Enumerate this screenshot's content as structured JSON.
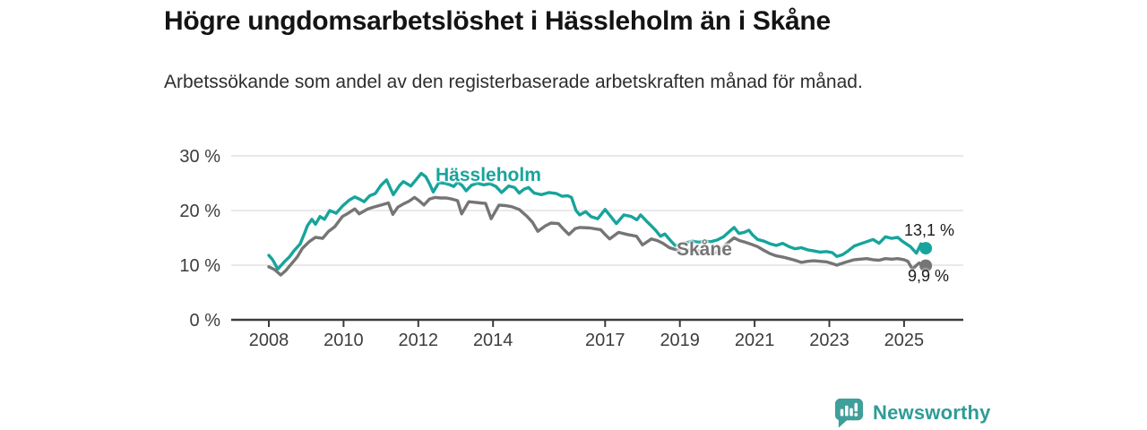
{
  "chart_data": {
    "type": "line",
    "title": "Högre ungdomsarbetslöshet i Hässleholm än i Skåne",
    "subtitle": "Arbetssökande som andel av den registerbaserade arbetskraften månad för månad.",
    "unit": "%",
    "xlabel": "",
    "ylabel": "",
    "ylim": [
      0,
      30
    ],
    "xlim": [
      2007,
      2026.5
    ],
    "grid": "horizontal-only",
    "legend": "inline-series-labels",
    "y_ticks": [
      {
        "v": 0,
        "label": "0 %"
      },
      {
        "v": 10,
        "label": "10 %"
      },
      {
        "v": 20,
        "label": "20 %"
      },
      {
        "v": 30,
        "label": "30 %"
      }
    ],
    "x_ticks": [
      {
        "v": 2008,
        "label": "2008"
      },
      {
        "v": 2010,
        "label": "2010"
      },
      {
        "v": 2012,
        "label": "2012"
      },
      {
        "v": 2014,
        "label": "2014"
      },
      {
        "v": 2017,
        "label": "2017"
      },
      {
        "v": 2019,
        "label": "2019"
      },
      {
        "v": 2021,
        "label": "2021"
      },
      {
        "v": 2023,
        "label": "2023"
      },
      {
        "v": 2025,
        "label": "2025"
      }
    ],
    "series": [
      {
        "name": "Hässleholm",
        "slug": "hassleholm",
        "color": "#17a49c",
        "end_label": "13,1 %",
        "end_value": 13.1,
        "points": [
          [
            2008.0,
            11.8
          ],
          [
            2008.1,
            11.0
          ],
          [
            2008.24,
            9.3
          ],
          [
            2008.43,
            10.7
          ],
          [
            2008.55,
            11.5
          ],
          [
            2008.67,
            12.6
          ],
          [
            2008.84,
            13.9
          ],
          [
            2008.96,
            15.9
          ],
          [
            2009.03,
            17.2
          ],
          [
            2009.15,
            18.4
          ],
          [
            2009.25,
            17.5
          ],
          [
            2009.37,
            18.9
          ],
          [
            2009.49,
            18.4
          ],
          [
            2009.63,
            20.0
          ],
          [
            2009.8,
            19.5
          ],
          [
            2009.97,
            20.8
          ],
          [
            2010.15,
            21.9
          ],
          [
            2010.3,
            22.5
          ],
          [
            2010.45,
            22.0
          ],
          [
            2010.55,
            21.6
          ],
          [
            2010.7,
            22.7
          ],
          [
            2010.85,
            23.1
          ],
          [
            2011.0,
            24.6
          ],
          [
            2011.15,
            25.6
          ],
          [
            2011.33,
            22.9
          ],
          [
            2011.5,
            24.6
          ],
          [
            2011.6,
            25.3
          ],
          [
            2011.8,
            24.5
          ],
          [
            2011.95,
            25.7
          ],
          [
            2012.08,
            26.8
          ],
          [
            2012.2,
            26.2
          ],
          [
            2012.3,
            24.9
          ],
          [
            2012.4,
            23.4
          ],
          [
            2012.55,
            25.1
          ],
          [
            2012.7,
            25.0
          ],
          [
            2012.85,
            24.7
          ],
          [
            2012.95,
            24.4
          ],
          [
            2013.05,
            25.2
          ],
          [
            2013.17,
            24.6
          ],
          [
            2013.28,
            23.6
          ],
          [
            2013.42,
            24.6
          ],
          [
            2013.58,
            25.0
          ],
          [
            2013.75,
            24.7
          ],
          [
            2013.92,
            24.9
          ],
          [
            2014.08,
            24.4
          ],
          [
            2014.23,
            23.3
          ],
          [
            2014.42,
            24.5
          ],
          [
            2014.58,
            24.2
          ],
          [
            2014.7,
            23.2
          ],
          [
            2014.83,
            23.9
          ],
          [
            2014.95,
            24.2
          ],
          [
            2015.1,
            23.2
          ],
          [
            2015.3,
            22.9
          ],
          [
            2015.5,
            23.3
          ],
          [
            2015.7,
            23.1
          ],
          [
            2015.85,
            22.6
          ],
          [
            2016.0,
            22.7
          ],
          [
            2016.1,
            22.4
          ],
          [
            2016.22,
            20.0
          ],
          [
            2016.32,
            19.2
          ],
          [
            2016.48,
            19.8
          ],
          [
            2016.62,
            18.9
          ],
          [
            2016.8,
            18.5
          ],
          [
            2017.0,
            20.2
          ],
          [
            2017.15,
            18.9
          ],
          [
            2017.3,
            17.6
          ],
          [
            2017.5,
            19.2
          ],
          [
            2017.7,
            18.9
          ],
          [
            2017.85,
            18.3
          ],
          [
            2017.95,
            19.2
          ],
          [
            2018.1,
            18.1
          ],
          [
            2018.22,
            17.3
          ],
          [
            2018.35,
            16.4
          ],
          [
            2018.48,
            15.3
          ],
          [
            2018.6,
            15.7
          ],
          [
            2018.75,
            14.5
          ],
          [
            2018.87,
            13.6
          ],
          [
            2019.0,
            13.8
          ],
          [
            2019.17,
            14.1
          ],
          [
            2019.33,
            14.4
          ],
          [
            2019.5,
            14.2
          ],
          [
            2019.67,
            14.4
          ],
          [
            2019.83,
            14.3
          ],
          [
            2020.0,
            14.6
          ],
          [
            2020.17,
            15.2
          ],
          [
            2020.33,
            16.2
          ],
          [
            2020.45,
            16.9
          ],
          [
            2020.58,
            15.8
          ],
          [
            2020.72,
            16.0
          ],
          [
            2020.85,
            16.4
          ],
          [
            2020.95,
            15.5
          ],
          [
            2021.08,
            14.7
          ],
          [
            2021.25,
            14.4
          ],
          [
            2021.42,
            13.9
          ],
          [
            2021.58,
            13.6
          ],
          [
            2021.75,
            14.0
          ],
          [
            2021.92,
            13.4
          ],
          [
            2022.08,
            13.0
          ],
          [
            2022.25,
            13.2
          ],
          [
            2022.42,
            12.8
          ],
          [
            2022.58,
            12.6
          ],
          [
            2022.75,
            12.4
          ],
          [
            2022.92,
            12.5
          ],
          [
            2023.08,
            12.3
          ],
          [
            2023.2,
            11.6
          ],
          [
            2023.35,
            11.9
          ],
          [
            2023.5,
            12.6
          ],
          [
            2023.67,
            13.5
          ],
          [
            2023.83,
            13.9
          ],
          [
            2024.0,
            14.3
          ],
          [
            2024.17,
            14.7
          ],
          [
            2024.33,
            14.0
          ],
          [
            2024.5,
            15.2
          ],
          [
            2024.67,
            14.9
          ],
          [
            2024.83,
            15.1
          ],
          [
            2024.95,
            14.4
          ],
          [
            2025.08,
            13.8
          ],
          [
            2025.17,
            13.4
          ],
          [
            2025.33,
            12.2
          ],
          [
            2025.45,
            13.9
          ],
          [
            2025.58,
            13.1
          ]
        ]
      },
      {
        "name": "Skåne",
        "slug": "skane",
        "color": "#757575",
        "end_label": "9,9 %",
        "end_value": 9.9,
        "points": [
          [
            2008.0,
            9.7
          ],
          [
            2008.15,
            9.2
          ],
          [
            2008.32,
            8.2
          ],
          [
            2008.45,
            9.0
          ],
          [
            2008.6,
            10.2
          ],
          [
            2008.76,
            11.5
          ],
          [
            2008.9,
            13.1
          ],
          [
            2009.08,
            14.3
          ],
          [
            2009.25,
            15.1
          ],
          [
            2009.44,
            14.9
          ],
          [
            2009.6,
            16.2
          ],
          [
            2009.76,
            17.0
          ],
          [
            2009.97,
            18.9
          ],
          [
            2010.12,
            19.5
          ],
          [
            2010.3,
            20.3
          ],
          [
            2010.42,
            19.4
          ],
          [
            2010.55,
            19.9
          ],
          [
            2010.65,
            20.3
          ],
          [
            2010.8,
            20.6
          ],
          [
            2010.95,
            20.9
          ],
          [
            2011.1,
            21.2
          ],
          [
            2011.2,
            21.4
          ],
          [
            2011.32,
            19.3
          ],
          [
            2011.45,
            20.6
          ],
          [
            2011.6,
            21.2
          ],
          [
            2011.75,
            21.7
          ],
          [
            2011.9,
            22.4
          ],
          [
            2012.02,
            21.8
          ],
          [
            2012.15,
            21.0
          ],
          [
            2012.3,
            22.1
          ],
          [
            2012.45,
            22.4
          ],
          [
            2012.6,
            22.3
          ],
          [
            2012.75,
            22.3
          ],
          [
            2012.9,
            22.1
          ],
          [
            2013.05,
            21.8
          ],
          [
            2013.16,
            19.4
          ],
          [
            2013.35,
            21.6
          ],
          [
            2013.5,
            21.5
          ],
          [
            2013.65,
            21.4
          ],
          [
            2013.8,
            21.3
          ],
          [
            2013.95,
            18.5
          ],
          [
            2014.16,
            21.0
          ],
          [
            2014.33,
            20.9
          ],
          [
            2014.5,
            20.7
          ],
          [
            2014.7,
            20.2
          ],
          [
            2014.9,
            19.0
          ],
          [
            2015.05,
            17.9
          ],
          [
            2015.2,
            16.2
          ],
          [
            2015.4,
            17.2
          ],
          [
            2015.55,
            17.7
          ],
          [
            2015.75,
            17.6
          ],
          [
            2015.9,
            16.5
          ],
          [
            2016.03,
            15.6
          ],
          [
            2016.2,
            16.7
          ],
          [
            2016.33,
            16.9
          ],
          [
            2016.6,
            16.8
          ],
          [
            2016.88,
            16.5
          ],
          [
            2017.0,
            15.6
          ],
          [
            2017.12,
            14.8
          ],
          [
            2017.36,
            16.0
          ],
          [
            2017.6,
            15.6
          ],
          [
            2017.84,
            15.3
          ],
          [
            2018.0,
            13.7
          ],
          [
            2018.24,
            14.8
          ],
          [
            2018.4,
            14.5
          ],
          [
            2018.55,
            14.0
          ],
          [
            2018.72,
            13.2
          ],
          [
            2018.96,
            12.7
          ],
          [
            2019.08,
            11.9
          ],
          [
            2019.25,
            12.8
          ],
          [
            2019.42,
            12.7
          ],
          [
            2019.58,
            12.6
          ],
          [
            2019.75,
            12.4
          ],
          [
            2019.92,
            12.2
          ],
          [
            2020.08,
            12.8
          ],
          [
            2020.25,
            13.9
          ],
          [
            2020.45,
            15.0
          ],
          [
            2020.6,
            14.5
          ],
          [
            2020.75,
            14.2
          ],
          [
            2020.92,
            13.8
          ],
          [
            2021.08,
            13.4
          ],
          [
            2021.25,
            12.7
          ],
          [
            2021.42,
            12.1
          ],
          [
            2021.58,
            11.7
          ],
          [
            2021.75,
            11.5
          ],
          [
            2021.92,
            11.2
          ],
          [
            2022.08,
            10.9
          ],
          [
            2022.25,
            10.5
          ],
          [
            2022.42,
            10.7
          ],
          [
            2022.58,
            10.8
          ],
          [
            2022.75,
            10.7
          ],
          [
            2022.92,
            10.6
          ],
          [
            2023.08,
            10.3
          ],
          [
            2023.2,
            10.0
          ],
          [
            2023.42,
            10.5
          ],
          [
            2023.67,
            11.0
          ],
          [
            2023.83,
            11.1
          ],
          [
            2024.0,
            11.2
          ],
          [
            2024.17,
            11.0
          ],
          [
            2024.33,
            10.9
          ],
          [
            2024.5,
            11.2
          ],
          [
            2024.67,
            11.1
          ],
          [
            2024.83,
            11.2
          ],
          [
            2025.0,
            11.0
          ],
          [
            2025.1,
            10.7
          ],
          [
            2025.22,
            9.3
          ],
          [
            2025.4,
            10.4
          ],
          [
            2025.58,
            9.9
          ]
        ]
      }
    ],
    "axis_color": "#3b3b3b",
    "gridline_color": "#e2e2e2",
    "tick_label_color": "#3d3d3d"
  },
  "footer": {
    "brand": "Newsworthy",
    "brand_color": "#2e9c96",
    "logo_color": "#3f9f9a"
  }
}
